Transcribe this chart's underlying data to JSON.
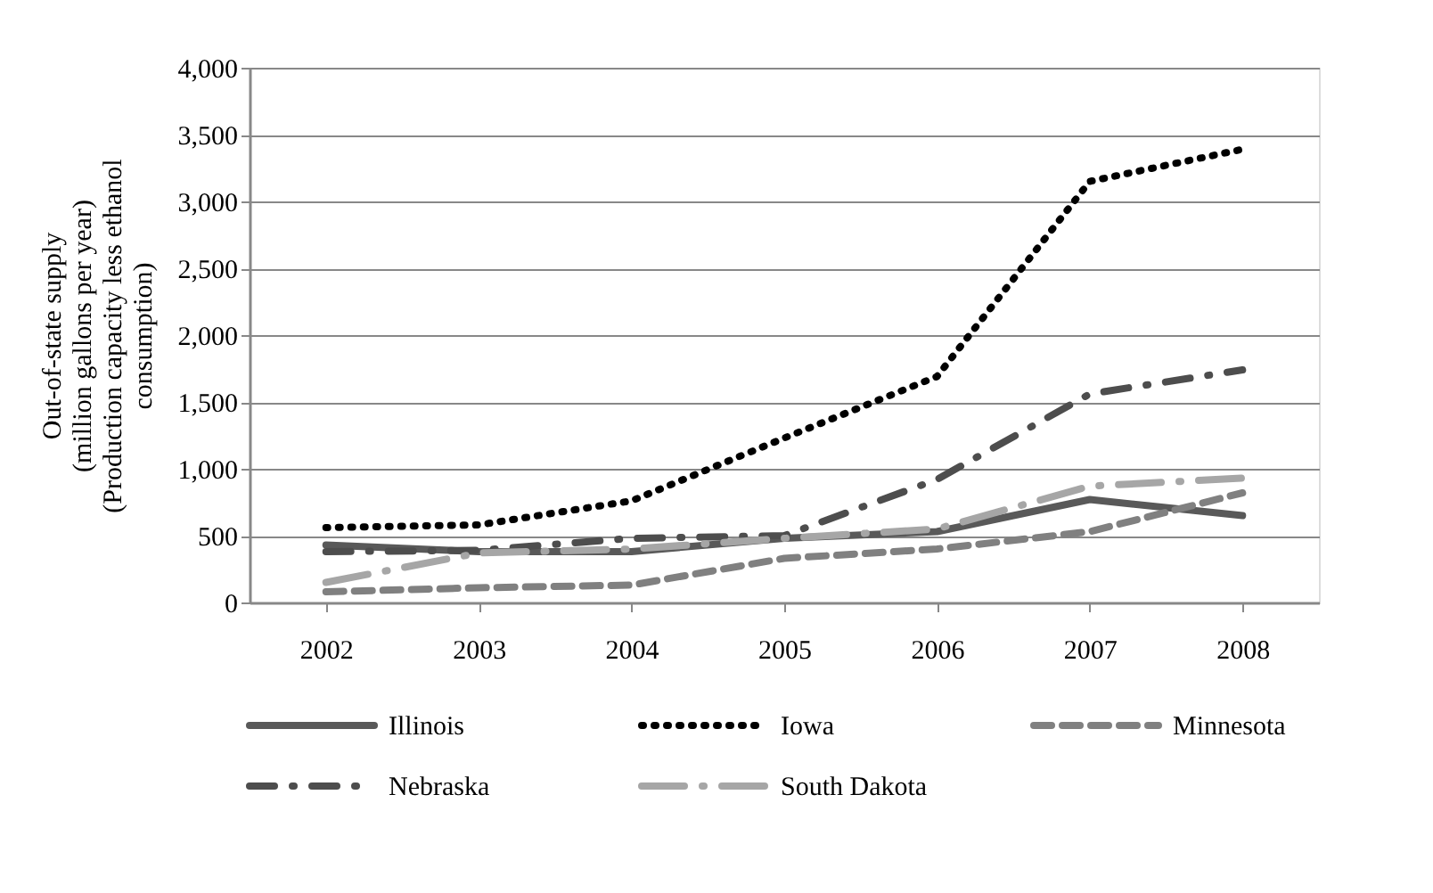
{
  "chart_data": {
    "type": "line",
    "ylabel": "Out-of-state supply\n(million gallons per year)\n(Production capacity less ethanol\nconsumption)",
    "categories": [
      "2002",
      "2003",
      "2004",
      "2005",
      "2006",
      "2007",
      "2008"
    ],
    "ylim": [
      0,
      4000
    ],
    "yticks": [
      0,
      500,
      {
        "value": 1000,
        "label": "1,000"
      },
      {
        "value": 1500,
        "label": "1,500"
      },
      {
        "value": 2000,
        "label": "2,000"
      },
      {
        "value": 2500,
        "label": "2,500"
      },
      {
        "value": 3000,
        "label": "3,000"
      },
      {
        "value": 3500,
        "label": "3,500"
      },
      {
        "value": 4000,
        "label": "4,000"
      }
    ],
    "grid": "y",
    "legend": "bottom",
    "series": [
      {
        "name": "Illinois",
        "color": "#595959",
        "line_style": "solid",
        "values": [
          430,
          380,
          380,
          480,
          530,
          770,
          650
        ]
      },
      {
        "name": "Iowa",
        "color": "#000000",
        "line_style": "dotted",
        "values": [
          560,
          580,
          760,
          1230,
          1690,
          3150,
          3390
        ]
      },
      {
        "name": "Minnesota",
        "color": "#808080",
        "line_style": "dashed",
        "values": [
          80,
          110,
          130,
          330,
          400,
          530,
          820
        ]
      },
      {
        "name": "Nebraska",
        "color": "#4d4d4d",
        "line_style": "dashdot",
        "values": [
          380,
          390,
          480,
          500,
          920,
          1560,
          1740
        ]
      },
      {
        "name": "South Dakota",
        "color": "#a6a6a6",
        "line_style": "longdashdot",
        "values": [
          150,
          370,
          400,
          480,
          550,
          870,
          930
        ]
      }
    ]
  }
}
